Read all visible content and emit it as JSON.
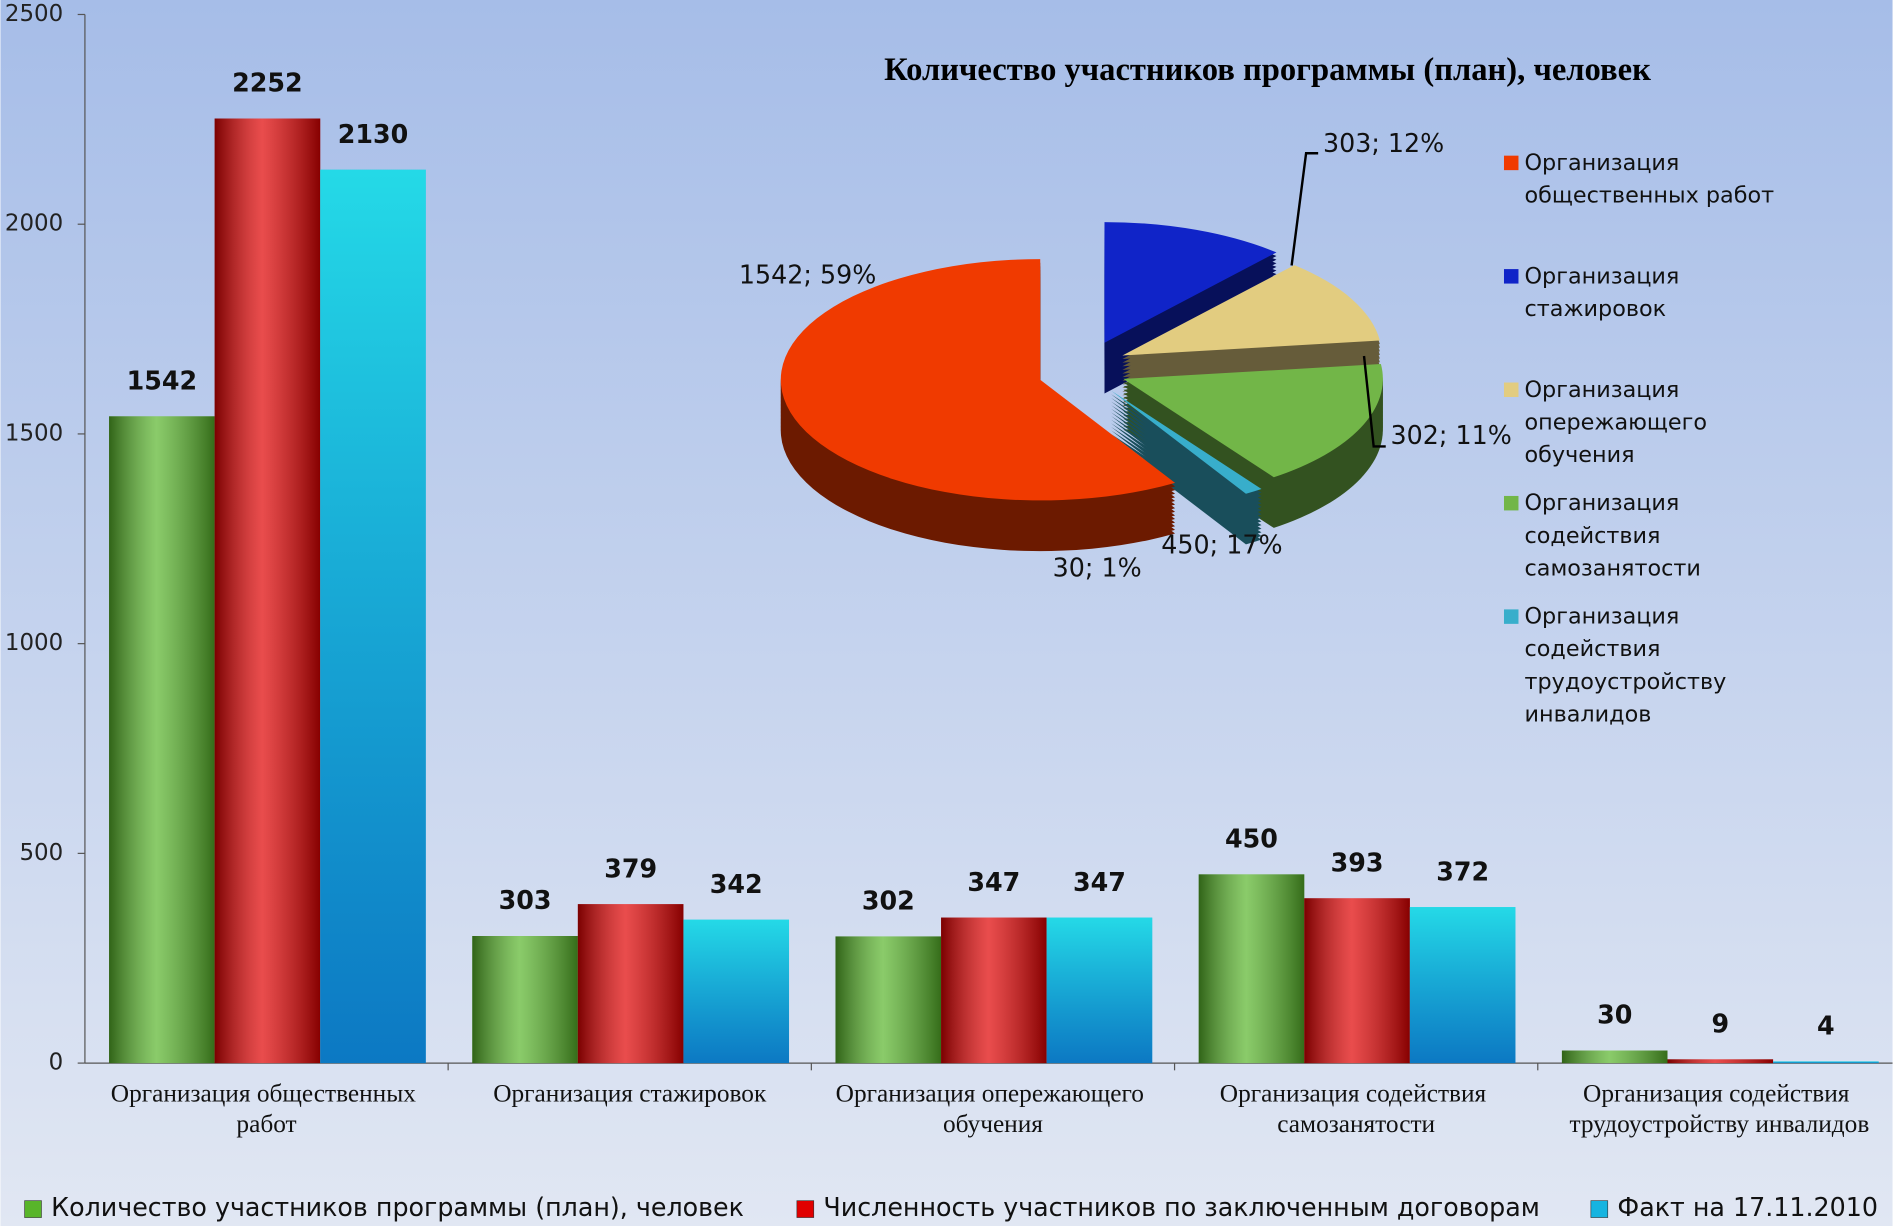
{
  "chart_data": [
    {
      "type": "bar",
      "categories": [
        "Организация общественных работ",
        "Организация стажировок",
        "Организация опережающего обучения",
        "Организация содействия самозанятости",
        "Организация содействия трудоустройству инвалидов"
      ],
      "series": [
        {
          "name": "Количество участников программы (план), человек",
          "color": "#58b52a",
          "values": [
            1542,
            303,
            302,
            450,
            30
          ]
        },
        {
          "name": "Численность участников по заключенным договорам",
          "color": "#e00000",
          "values": [
            2252,
            379,
            347,
            393,
            9
          ]
        },
        {
          "name": "Факт на 17.11.2010",
          "color": "#16b4e0",
          "values": [
            2130,
            342,
            347,
            372,
            4
          ]
        }
      ],
      "ylim": [
        0,
        2500
      ],
      "yticks": [
        0,
        500,
        1000,
        1500,
        2000,
        2500
      ]
    },
    {
      "type": "pie",
      "title": "Количество участников программы (план), человек",
      "categories": [
        "Организация общественных работ",
        "Организация стажировок",
        "Организация опережающего обучения",
        "Организация содействия самозанятости",
        "Организация содействия трудоустройству инвалидов"
      ],
      "values": [
        1542,
        303,
        302,
        450,
        30
      ],
      "value_labels": [
        "1542; 59%",
        "303; 12%",
        "302; 11%",
        "450; 17%",
        "30; 1%"
      ],
      "colors": [
        "#f03a00",
        "#1024c8",
        "#e2cc80",
        "#72b648",
        "#38aecb"
      ]
    }
  ]
}
